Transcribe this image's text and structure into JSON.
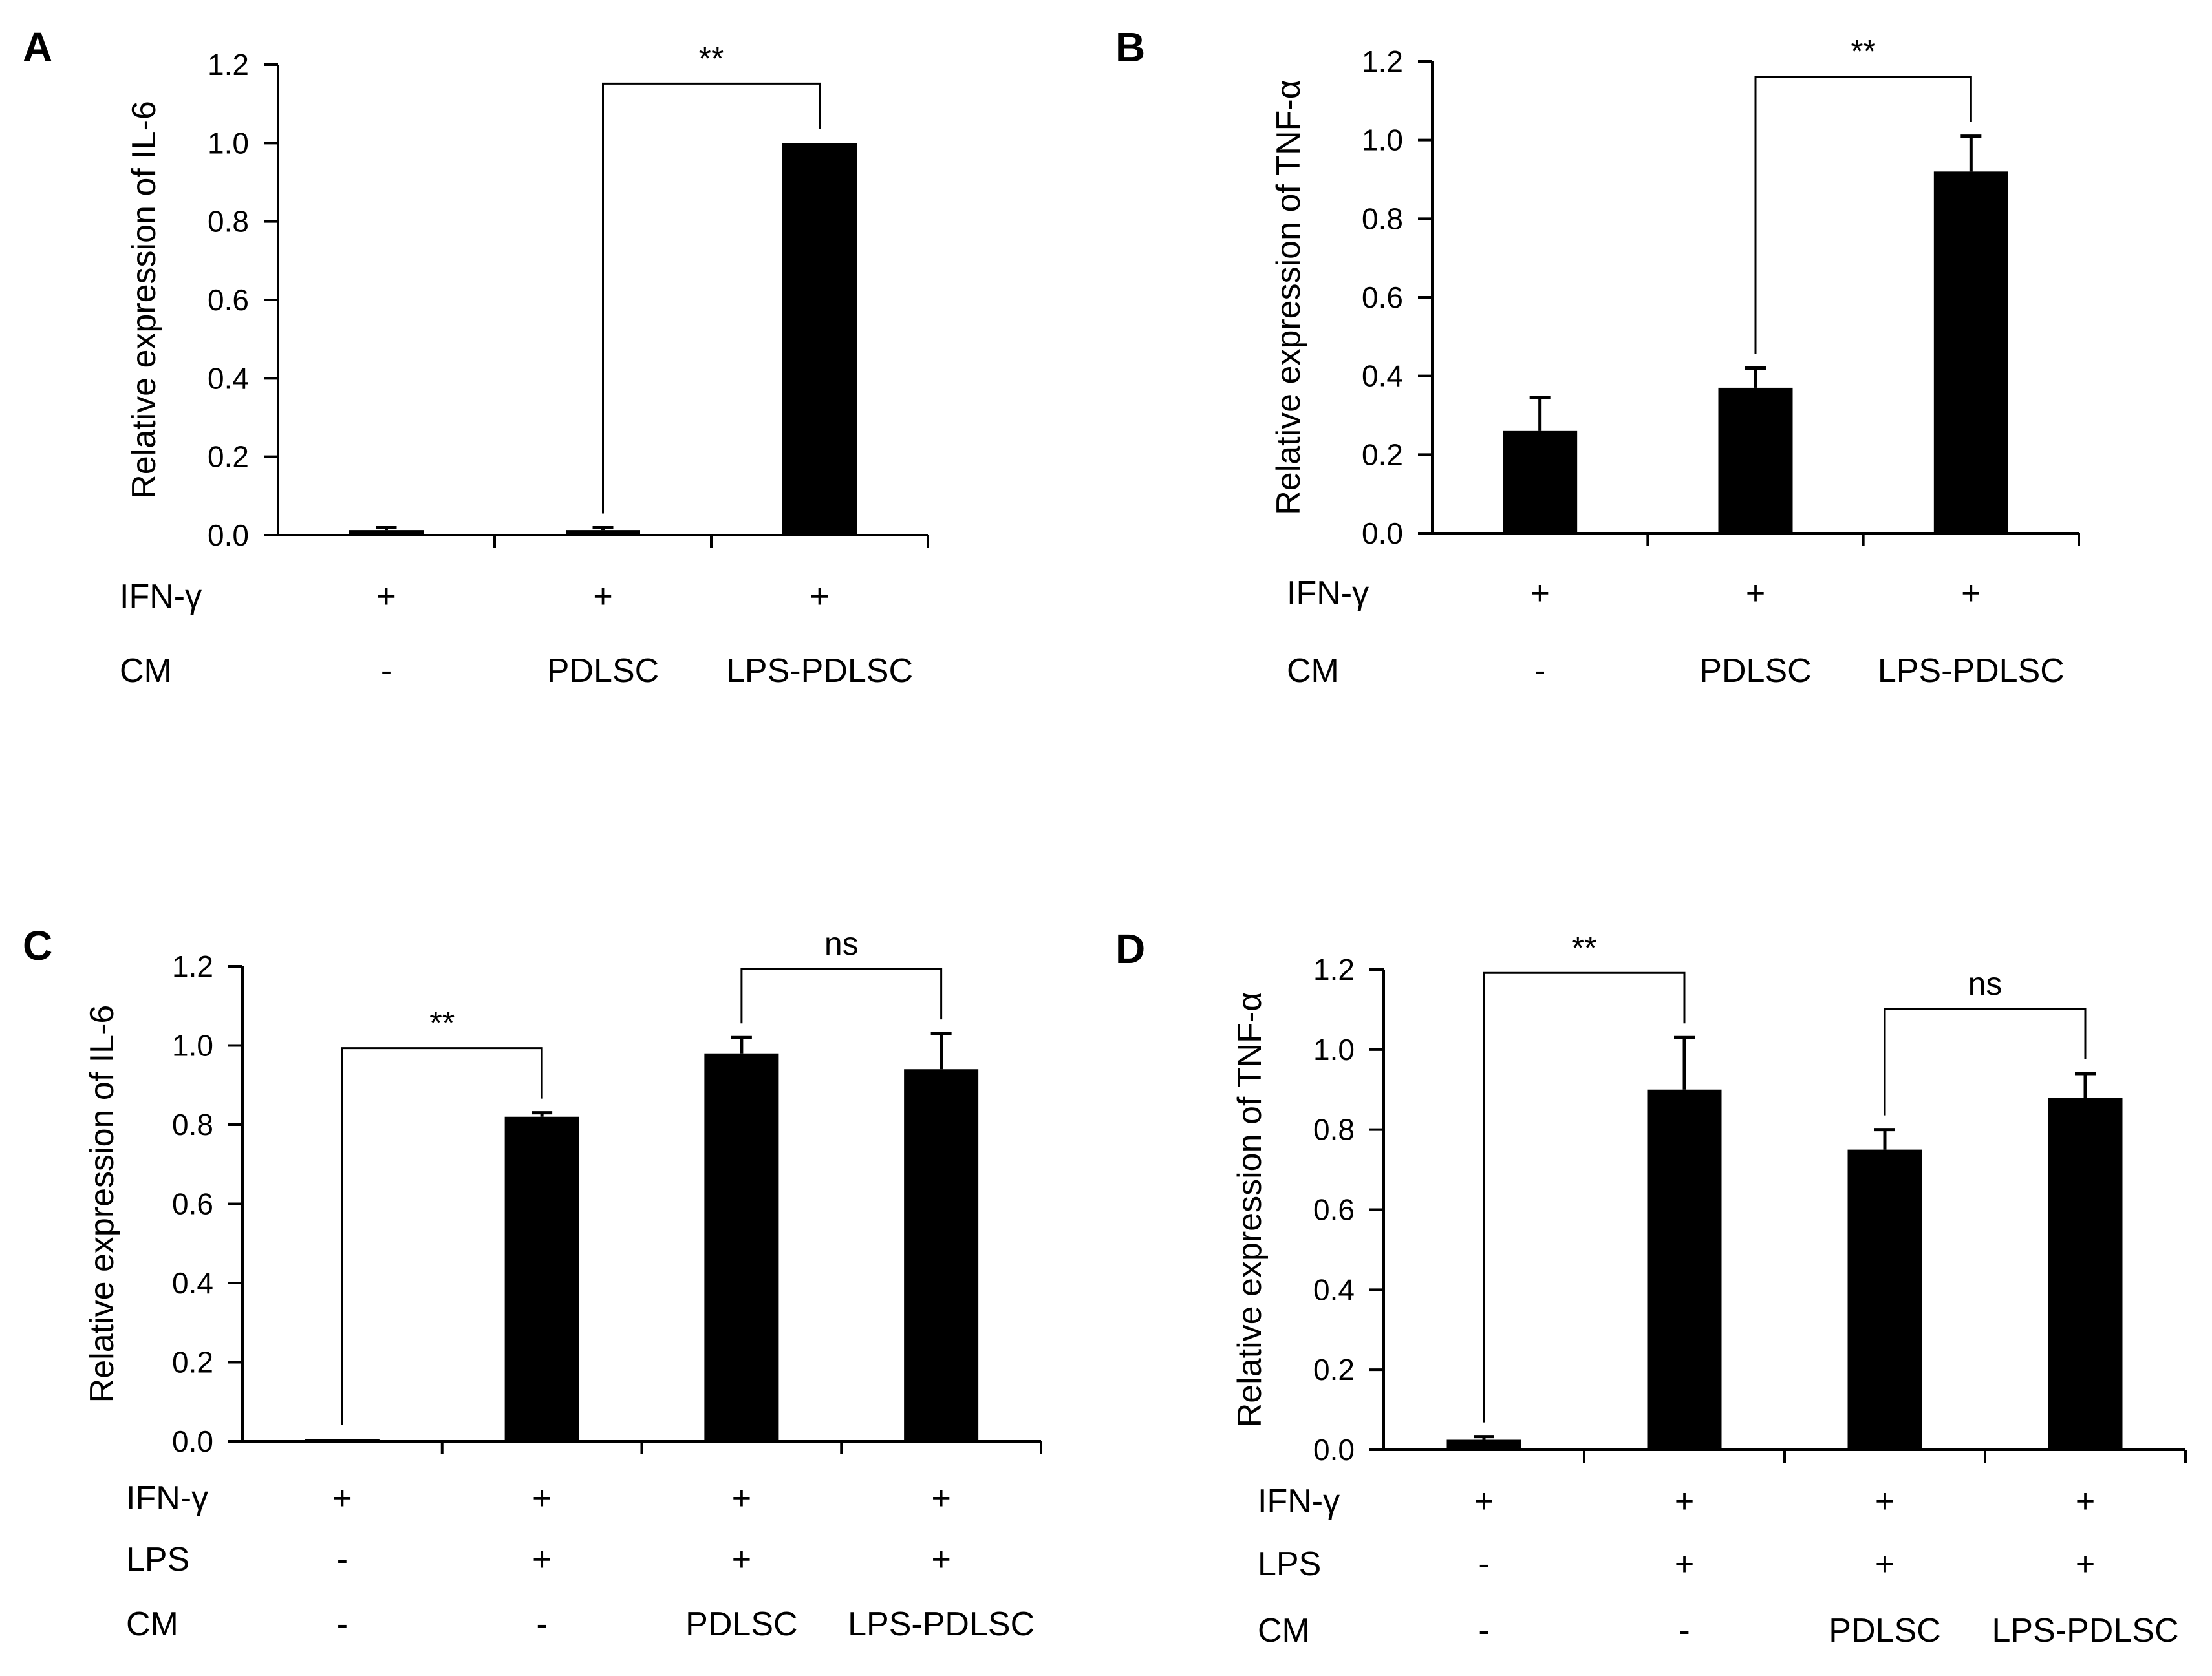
{
  "chart_data": [
    {
      "panel": "A",
      "type": "bar",
      "ylabel": "Relative expression of IL-6",
      "ylim": [
        0,
        1.2
      ],
      "yticks": [
        "0.0",
        "0.2",
        "0.4",
        "0.6",
        "0.8",
        "1.0",
        "1.2"
      ],
      "categories": [
        "IFN-γ + / CM -",
        "IFN-γ + / CM PDLSC",
        "IFN-γ + / CM LPS-PDLSC"
      ],
      "values": [
        0.013,
        0.013,
        1.0
      ],
      "errors": [
        0.006,
        0.006,
        0.0
      ],
      "conditions": [
        {
          "label": "IFN-γ",
          "values": [
            "+",
            "+",
            "+"
          ]
        },
        {
          "label": "CM",
          "values": [
            "-",
            "PDLSC",
            "LPS-PDLSC"
          ]
        }
      ],
      "significance": [
        {
          "from": 1,
          "to": 2,
          "label": "**"
        }
      ]
    },
    {
      "panel": "B",
      "type": "bar",
      "ylabel": "Relative expression of TNF-α",
      "ylim": [
        0,
        1.2
      ],
      "yticks": [
        "0.0",
        "0.2",
        "0.4",
        "0.6",
        "0.8",
        "1.0",
        "1.2"
      ],
      "categories": [
        "IFN-γ + / CM -",
        "IFN-γ + / CM PDLSC",
        "IFN-γ + / CM LPS-PDLSC"
      ],
      "values": [
        0.26,
        0.37,
        0.92
      ],
      "errors": [
        0.085,
        0.05,
        0.09
      ],
      "conditions": [
        {
          "label": "IFN-γ",
          "values": [
            "+",
            "+",
            "+"
          ]
        },
        {
          "label": "CM",
          "values": [
            "-",
            "PDLSC",
            "LPS-PDLSC"
          ]
        }
      ],
      "significance": [
        {
          "from": 1,
          "to": 2,
          "label": "**"
        }
      ]
    },
    {
      "panel": "C",
      "type": "bar",
      "ylabel": "Relative expression of IL-6",
      "ylim": [
        0,
        1.2
      ],
      "yticks": [
        "0.0",
        "0.2",
        "0.4",
        "0.6",
        "0.8",
        "1.0",
        "1.2"
      ],
      "categories": [
        "IFN-γ + / LPS - / CM -",
        "IFN-γ + / LPS + / CM -",
        "IFN-γ + / LPS + / CM PDLSC",
        "IFN-γ + / LPS + / CM LPS-PDLSC"
      ],
      "values": [
        0.006,
        0.82,
        0.98,
        0.94
      ],
      "errors": [
        0.0,
        0.01,
        0.04,
        0.09
      ],
      "conditions": [
        {
          "label": "IFN-γ",
          "values": [
            "+",
            "+",
            "+",
            "+"
          ]
        },
        {
          "label": "LPS",
          "values": [
            "-",
            "+",
            "+",
            "+"
          ]
        },
        {
          "label": "CM",
          "values": [
            "-",
            "-",
            "PDLSC",
            "LPS-PDLSC"
          ]
        }
      ],
      "significance": [
        {
          "from": 0,
          "to": 1,
          "label": "**"
        },
        {
          "from": 2,
          "to": 3,
          "label": "ns"
        }
      ]
    },
    {
      "panel": "D",
      "type": "bar",
      "ylabel": "Relative expression of TNF-α",
      "ylim": [
        0,
        1.2
      ],
      "yticks": [
        "0.0",
        "0.2",
        "0.4",
        "0.6",
        "0.8",
        "1.0",
        "1.2"
      ],
      "categories": [
        "IFN-γ + / LPS - / CM -",
        "IFN-γ + / LPS + / CM -",
        "IFN-γ + / LPS + / CM PDLSC",
        "IFN-γ + / LPS + / CM LPS-PDLSC"
      ],
      "values": [
        0.025,
        0.9,
        0.75,
        0.88
      ],
      "errors": [
        0.008,
        0.13,
        0.05,
        0.06
      ],
      "conditions": [
        {
          "label": "IFN-γ",
          "values": [
            "+",
            "+",
            "+",
            "+"
          ]
        },
        {
          "label": "LPS",
          "values": [
            "-",
            "+",
            "+",
            "+"
          ]
        },
        {
          "label": "CM",
          "values": [
            "-",
            "-",
            "PDLSC",
            "LPS-PDLSC"
          ]
        }
      ],
      "significance": [
        {
          "from": 0,
          "to": 1,
          "label": "**"
        },
        {
          "from": 2,
          "to": 3,
          "label": "ns"
        }
      ]
    }
  ]
}
